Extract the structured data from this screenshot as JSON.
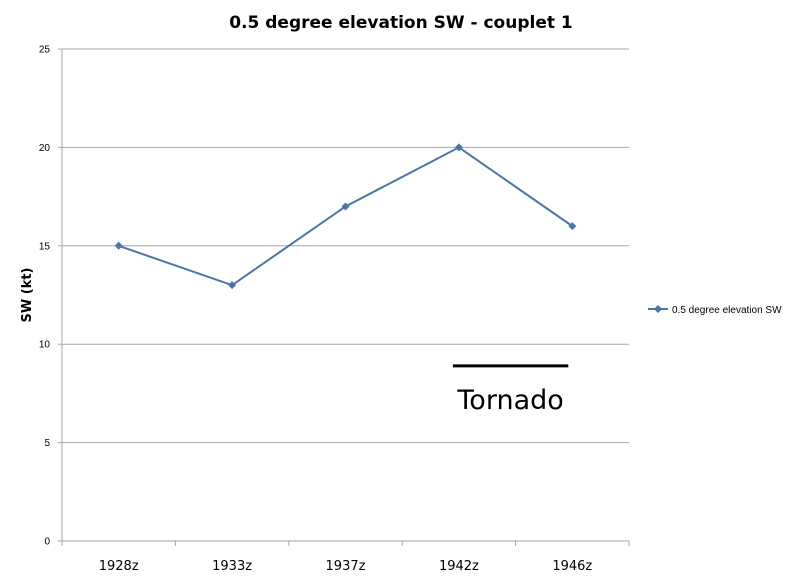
{
  "chart_data": {
    "type": "line",
    "title": "0.5 degree elevation SW - couplet 1",
    "xlabel": "",
    "ylabel": "SW (kt)",
    "ylim": [
      0,
      25
    ],
    "yticks": [
      "0",
      "5",
      "10",
      "15",
      "20",
      "25"
    ],
    "categories": [
      "1928z",
      "1933z",
      "1937z",
      "1942z",
      "1946z"
    ],
    "series": [
      {
        "name": "0.5 degree elevation SW",
        "values": [
          15,
          13,
          17,
          20,
          16
        ],
        "color": "#4a76a8",
        "marker": "diamond"
      }
    ],
    "grid": true,
    "legend_position": "right",
    "annotation": {
      "text": "Tornado",
      "x_from": "1942z",
      "x_to": "1946z"
    }
  }
}
